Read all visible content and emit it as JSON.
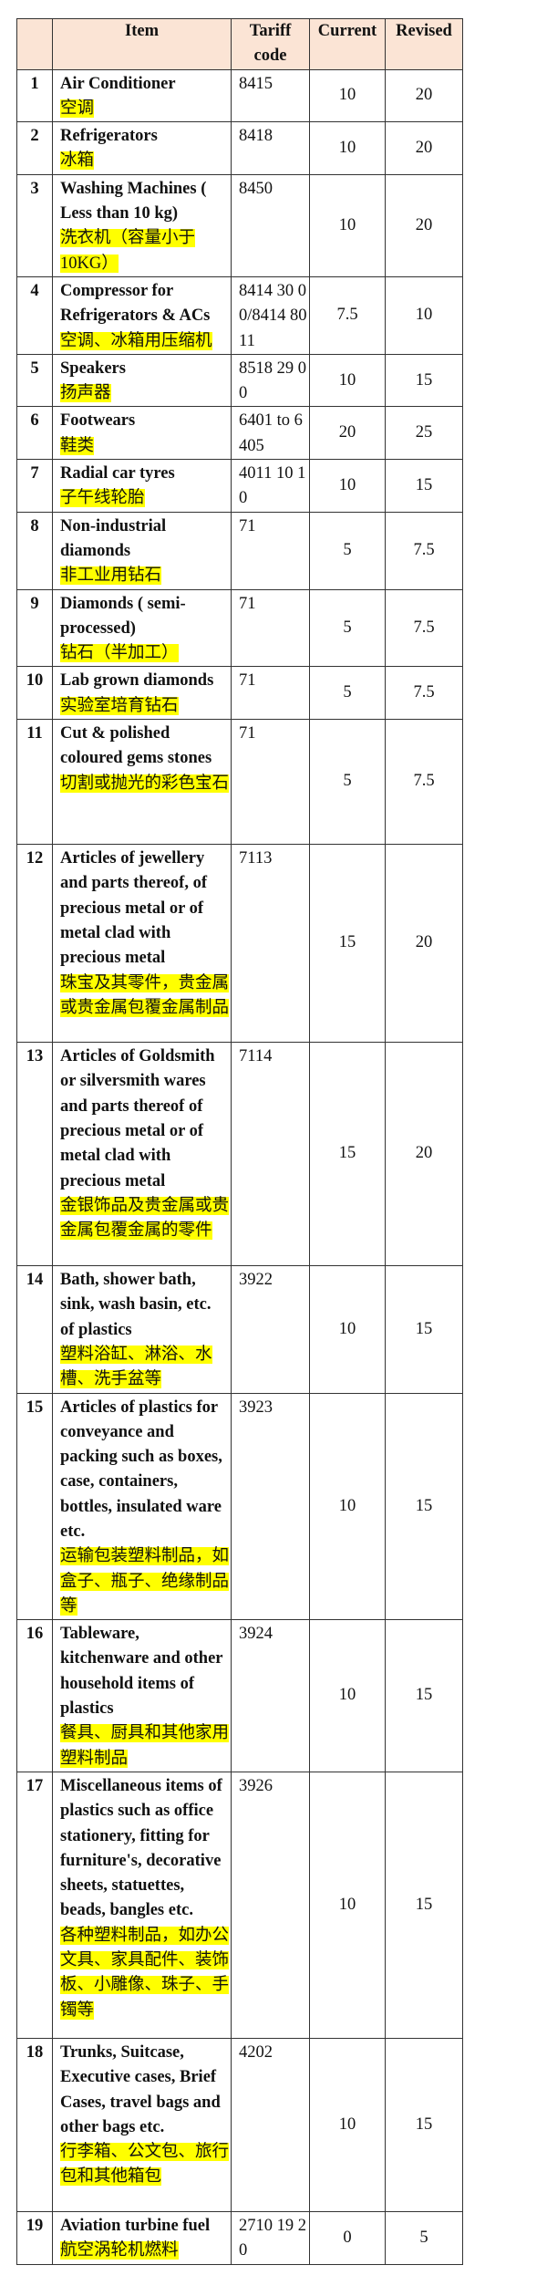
{
  "header": {
    "no": "",
    "item": "Item",
    "tariff_code": "Tariff code",
    "current": "Current",
    "revised": "Revised"
  },
  "rows": [
    {
      "no": "1",
      "item_en": "Air Conditioner",
      "item_zh": "空调",
      "code": "8415",
      "current": "10",
      "revised": "20"
    },
    {
      "no": "2",
      "item_en": "Refrigerators",
      "item_zh": "冰箱",
      "code": "8418",
      "current": "10",
      "revised": "20"
    },
    {
      "no": "3",
      "item_en": "Washing Machines ( Less than 10  kg)",
      "item_zh": "洗衣机（容量小于10KG）",
      "code": "8450",
      "current": "10",
      "revised": "20"
    },
    {
      "no": "4",
      "item_en": "Compressor for Refrigerators & ACs",
      "item_zh": "空调、冰箱用压缩机",
      "code": "8414 30 00/8414 80 11",
      "current": "7.5",
      "revised": "10"
    },
    {
      "no": "5",
      "item_en": "Speakers",
      "item_zh": "扬声器",
      "code": "8518 29 00",
      "current": "10",
      "revised": "15"
    },
    {
      "no": "6",
      "item_en": "Footwears",
      "item_zh": "鞋类",
      "code": "6401 to 6405",
      "current": "20",
      "revised": "25"
    },
    {
      "no": "7",
      "item_en": "Radial car tyres",
      "item_zh": "子午线轮胎",
      "code": "4011 10 10",
      "current": "10",
      "revised": "15"
    },
    {
      "no": "8",
      "item_en": "Non-industrial diamonds",
      "item_zh": "非工业用钻石",
      "code": "71",
      "current": "5",
      "revised": "7.5"
    },
    {
      "no": "9",
      "item_en": "Diamonds ( semi-processed)",
      "item_zh": "钻石（半加工）",
      "code": "71",
      "current": "5",
      "revised": "7.5"
    },
    {
      "no": "10",
      "item_en": "Lab grown diamonds",
      "item_zh": "实验室培育钻石",
      "code": "71",
      "current": "5",
      "revised": "7.5"
    },
    {
      "no": "11",
      "item_en": "Cut & polished coloured  gems stones",
      "item_zh": "切割或抛光的彩色宝石",
      "code": "71",
      "current": "5",
      "revised": "7.5"
    },
    {
      "no": "12",
      "item_en": "Articles of  jewellery and parts thereof, of precious metal or of metal clad with precious  metal",
      "item_zh": "珠宝及其零件，贵金属或贵金属包覆金属制品",
      "code": "7113",
      "current": "15",
      "revised": "20"
    },
    {
      "no": "13",
      "item_en": "Articles of Goldsmith or  silversmith wares and parts thereof of precious metal or of metal clad with precious metal",
      "item_zh": "金银饰品及贵金属或贵金属包覆金属的零件",
      "code": "7114",
      "current": "15",
      "revised": "20"
    },
    {
      "no": "14",
      "item_en": "Bath, shower bath, sink, wash basin, etc. of plastics",
      "item_zh": "塑料浴缸、淋浴、水槽、洗手盆等",
      "code": "3922",
      "current": "10",
      "revised": "15"
    },
    {
      "no": "15",
      "item_en": "Articles of plastics for  conveyance and packing such as boxes, case, containers, bottles, insulated  ware etc.",
      "item_zh": "运输包装塑料制品，如盒子、瓶子、绝缘制品等",
      "code": "3923",
      "current": "10",
      "revised": "15"
    },
    {
      "no": "16",
      "item_en": "Tableware, kitchenware and other household items of plastics",
      "item_zh": "餐具、厨具和其他家用塑料制品",
      "code": "3924",
      "current": "10",
      "revised": "15"
    },
    {
      "no": "17",
      "item_en": "Miscellaneous items of plastics  such as office stationery, fitting for furniture's, decorative sheets, statuettes, beads, bangles etc.",
      "item_zh": "各种塑料制品，如办公文具、家具配件、装饰板、小雕像、珠子、手镯等",
      "code": "3926",
      "current": "10",
      "revised": "15"
    },
    {
      "no": "18",
      "item_en": "Trunks, Suitcase, Executive  cases, Brief Cases, travel bags and other bags etc.",
      "item_zh": "行李箱、公文包、旅行包和其他箱包",
      "code": "4202",
      "current": "10",
      "revised": "15"
    },
    {
      "no": "19",
      "item_en": "Aviation turbine fuel",
      "item_zh": "航空涡轮机燃料",
      "code": "2710 19 20",
      "current": "0",
      "revised": "5"
    }
  ],
  "colors": {
    "header_bg": "#fbe4d5",
    "highlight": "#ffff00",
    "border": "#333333"
  }
}
